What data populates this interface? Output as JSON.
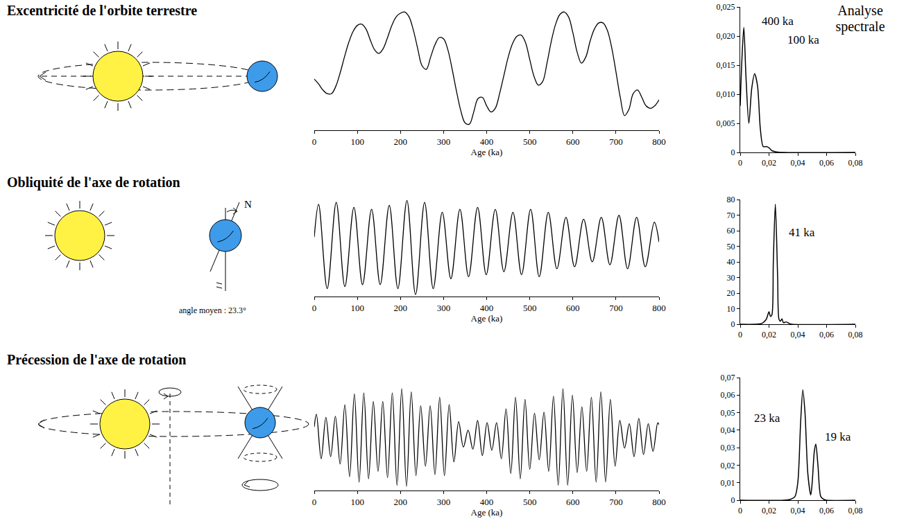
{
  "rows": [
    {
      "title": "Excentricité de l'orbite terrestre"
    },
    {
      "title": "Obliquité de l'axe de rotation",
      "axis_label": "N",
      "angle_label": "angle moyen : 23.3°"
    },
    {
      "title": "Précession de l'axe de rotation"
    }
  ],
  "spectral_header": "Analyse spectrale",
  "chart_data": [
    {
      "type": "line",
      "xlabel": "Age (ka)",
      "color": "#000000",
      "grid": false,
      "tick_labels": "x",
      "xlim": [
        0,
        800
      ],
      "xticks": [
        0,
        100,
        200,
        300,
        400,
        500,
        600,
        700,
        800
      ],
      "ylim": [
        0,
        1
      ],
      "x": [
        0,
        10,
        20,
        30,
        40,
        50,
        60,
        70,
        80,
        90,
        100,
        110,
        120,
        130,
        140,
        150,
        160,
        170,
        180,
        190,
        200,
        210,
        220,
        230,
        240,
        250,
        260,
        270,
        280,
        290,
        300,
        310,
        320,
        330,
        340,
        350,
        360,
        370,
        380,
        390,
        400,
        410,
        420,
        430,
        440,
        450,
        460,
        470,
        480,
        490,
        500,
        510,
        520,
        530,
        540,
        550,
        560,
        570,
        580,
        590,
        600,
        610,
        620,
        630,
        640,
        650,
        660,
        670,
        680,
        690,
        700,
        710,
        720,
        730,
        740,
        750,
        760,
        770,
        780,
        790,
        800
      ],
      "values": [
        0.42,
        0.38,
        0.33,
        0.3,
        0.3,
        0.36,
        0.47,
        0.6,
        0.72,
        0.81,
        0.86,
        0.87,
        0.83,
        0.74,
        0.66,
        0.63,
        0.67,
        0.76,
        0.86,
        0.93,
        0.96,
        0.97,
        0.93,
        0.82,
        0.67,
        0.53,
        0.5,
        0.6,
        0.7,
        0.76,
        0.75,
        0.66,
        0.5,
        0.32,
        0.16,
        0.06,
        0.05,
        0.15,
        0.26,
        0.27,
        0.2,
        0.15,
        0.18,
        0.3,
        0.45,
        0.6,
        0.71,
        0.77,
        0.78,
        0.72,
        0.58,
        0.44,
        0.37,
        0.4,
        0.55,
        0.73,
        0.87,
        0.95,
        0.97,
        0.93,
        0.8,
        0.64,
        0.55,
        0.6,
        0.73,
        0.83,
        0.88,
        0.88,
        0.82,
        0.68,
        0.48,
        0.27,
        0.12,
        0.17,
        0.3,
        0.33,
        0.27,
        0.2,
        0.18,
        0.2,
        0.25
      ]
    },
    {
      "type": "line",
      "color": "#000000",
      "grid": false,
      "xlim": [
        0,
        0.08
      ],
      "xticks": [
        0,
        {
          "value": 0.02,
          "label": "0,02"
        },
        {
          "value": 0.04,
          "label": "0,04"
        },
        {
          "value": 0.06,
          "label": "0,06"
        },
        {
          "value": 0.08,
          "label": "0,08"
        }
      ],
      "ylim": [
        0,
        0.025
      ],
      "yticks": [
        0,
        {
          "value": 0.005,
          "label": "0,005"
        },
        {
          "value": 0.01,
          "label": "0,010"
        },
        {
          "value": 0.015,
          "label": "0,015"
        },
        {
          "value": 0.02,
          "label": "0,020"
        },
        {
          "value": 0.025,
          "label": "0,025"
        }
      ],
      "x": [
        0,
        0.001,
        0.0025,
        0.004,
        0.006,
        0.008,
        0.01,
        0.012,
        0.014,
        0.016,
        0.018,
        0.02,
        0.022,
        0.025,
        0.03,
        0.08
      ],
      "values": [
        0.008,
        0.015,
        0.0215,
        0.013,
        0.005,
        0.011,
        0.0135,
        0.0115,
        0.004,
        0.001,
        0.001,
        0.0008,
        0.0003,
        0.0001,
        0,
        0
      ],
      "annotations": [
        {
          "text": "400 ka",
          "x": 0.014,
          "y": 0.0225
        },
        {
          "text": "100 ka",
          "x": 0.032,
          "y": 0.0193
        }
      ]
    },
    {
      "type": "line",
      "xlabel": "Age (ka)",
      "color": "#000000",
      "grid": false,
      "tick_labels": "x",
      "xlim": [
        0,
        800
      ],
      "xticks": [
        0,
        100,
        200,
        300,
        400,
        500,
        600,
        700,
        800
      ],
      "ylim": [
        0,
        1
      ],
      "x": [
        0,
        10,
        30,
        51,
        71,
        92,
        112,
        133,
        153,
        174,
        194,
        215,
        235,
        256,
        276,
        297,
        317,
        338,
        358,
        379,
        399,
        420,
        440,
        461,
        481,
        502,
        522,
        543,
        563,
        584,
        604,
        625,
        645,
        666,
        686,
        707,
        727,
        748,
        768,
        789,
        800
      ],
      "values": [
        0.6,
        0.93,
        0.08,
        0.95,
        0.1,
        0.9,
        0.12,
        0.88,
        0.12,
        0.92,
        0.08,
        0.97,
        0.02,
        0.95,
        0.08,
        0.85,
        0.18,
        0.88,
        0.2,
        0.9,
        0.22,
        0.88,
        0.25,
        0.85,
        0.22,
        0.88,
        0.2,
        0.85,
        0.28,
        0.8,
        0.3,
        0.78,
        0.35,
        0.8,
        0.32,
        0.82,
        0.28,
        0.8,
        0.3,
        0.75,
        0.55
      ]
    },
    {
      "type": "line",
      "color": "#000000",
      "grid": false,
      "xlim": [
        0,
        0.08
      ],
      "xticks": [
        0,
        {
          "value": 0.02,
          "label": "0,02"
        },
        {
          "value": 0.04,
          "label": "0,04"
        },
        {
          "value": 0.06,
          "label": "0,06"
        },
        {
          "value": 0.08,
          "label": "0,08"
        }
      ],
      "ylim": [
        0,
        80
      ],
      "yticks": [
        0,
        10,
        20,
        30,
        40,
        50,
        60,
        70,
        80
      ],
      "x": [
        0,
        0.01,
        0.015,
        0.018,
        0.02,
        0.021,
        0.022,
        0.023,
        0.0244,
        0.026,
        0.027,
        0.028,
        0.029,
        0.03,
        0.032,
        0.034,
        0.036,
        0.08
      ],
      "values": [
        0,
        0,
        0.5,
        3,
        8,
        5,
        6,
        40,
        77,
        30,
        3,
        2,
        3.5,
        1,
        1.5,
        0.5,
        0,
        0
      ],
      "annotations": [
        {
          "text": "41 ka",
          "x": 0.033,
          "y": 59
        }
      ]
    },
    {
      "type": "line",
      "xlabel": "Age (ka)",
      "color": "#000000",
      "grid": false,
      "tick_labels": "x",
      "xlim": [
        0,
        800
      ],
      "xticks": [
        0,
        100,
        200,
        300,
        400,
        500,
        600,
        700,
        800
      ],
      "ylim": [
        0,
        1
      ],
      "x": [
        0,
        5,
        16,
        27,
        38,
        49,
        60,
        71,
        82,
        93,
        104,
        115,
        126,
        137,
        148,
        159,
        170,
        181,
        192,
        203,
        214,
        225,
        236,
        247,
        258,
        269,
        280,
        291,
        302,
        313,
        324,
        335,
        346,
        357,
        368,
        379,
        390,
        401,
        412,
        423,
        434,
        445,
        456,
        467,
        478,
        489,
        500,
        511,
        522,
        533,
        544,
        555,
        566,
        577,
        588,
        599,
        610,
        621,
        632,
        643,
        654,
        665,
        676,
        687,
        698,
        709,
        720,
        731,
        742,
        753,
        764,
        775,
        786,
        797,
        800
      ],
      "values": [
        0.6,
        0.72,
        0.3,
        0.69,
        0.32,
        0.7,
        0.25,
        0.81,
        0.13,
        0.91,
        0.08,
        0.92,
        0.11,
        0.84,
        0.18,
        0.84,
        0.12,
        0.92,
        0.05,
        0.96,
        0.04,
        0.93,
        0.14,
        0.8,
        0.23,
        0.8,
        0.15,
        0.88,
        0.14,
        0.81,
        0.27,
        0.65,
        0.41,
        0.57,
        0.39,
        0.66,
        0.33,
        0.64,
        0.38,
        0.64,
        0.3,
        0.77,
        0.16,
        0.88,
        0.11,
        0.86,
        0.2,
        0.73,
        0.29,
        0.74,
        0.18,
        0.89,
        0.05,
        0.96,
        0.05,
        0.9,
        0.17,
        0.79,
        0.18,
        0.88,
        0.08,
        0.93,
        0.08,
        0.86,
        0.23,
        0.66,
        0.4,
        0.63,
        0.32,
        0.68,
        0.34,
        0.63,
        0.37,
        0.64,
        0.62
      ]
    },
    {
      "type": "line",
      "color": "#000000",
      "grid": false,
      "xlim": [
        0,
        0.08
      ],
      "xticks": [
        0,
        {
          "value": 0.02,
          "label": "0,02"
        },
        {
          "value": 0.04,
          "label": "0,04"
        },
        {
          "value": 0.06,
          "label": "0,06"
        },
        {
          "value": 0.08,
          "label": "0,08"
        }
      ],
      "ylim": [
        0,
        0.07
      ],
      "yticks": [
        0,
        {
          "value": 0.01,
          "label": "0,01"
        },
        {
          "value": 0.02,
          "label": "0,02"
        },
        {
          "value": 0.03,
          "label": "0,03"
        },
        {
          "value": 0.04,
          "label": "0,04"
        },
        {
          "value": 0.05,
          "label": "0,05"
        },
        {
          "value": 0.06,
          "label": "0,06"
        },
        {
          "value": 0.07,
          "label": "0,07"
        }
      ],
      "x": [
        0,
        0.03,
        0.035,
        0.038,
        0.04,
        0.042,
        0.0435,
        0.045,
        0.047,
        0.049,
        0.05,
        0.0515,
        0.0525,
        0.054,
        0.056,
        0.058,
        0.06,
        0.08
      ],
      "values": [
        0,
        0,
        0.0005,
        0.002,
        0.01,
        0.045,
        0.063,
        0.05,
        0.015,
        0.003,
        0.01,
        0.028,
        0.032,
        0.02,
        0.002,
        0.0005,
        0,
        0
      ],
      "annotations": [
        {
          "text": "23 ka",
          "x": 0.0087,
          "y": 0.047
        },
        {
          "text": "19 ka",
          "x": 0.058,
          "y": 0.036
        }
      ]
    }
  ]
}
